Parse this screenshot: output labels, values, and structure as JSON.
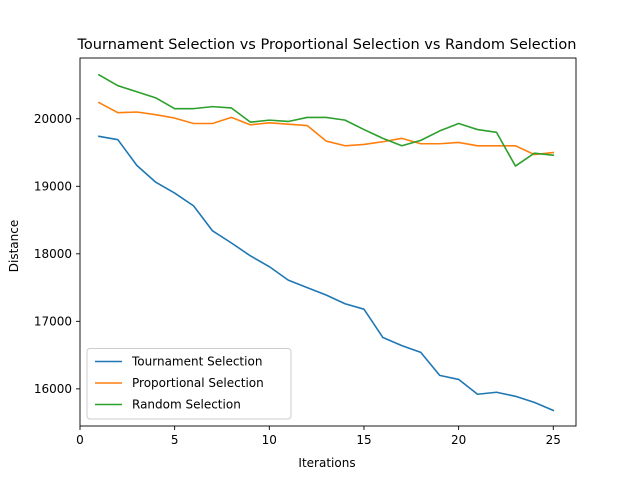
{
  "chart_data": {
    "type": "line",
    "title": "Tournament Selection vs Proportional Selection vs Random Selection",
    "xlabel": "Iterations",
    "ylabel": "Distance",
    "xlim": [
      0,
      26.2
    ],
    "ylim": [
      15450,
      20900
    ],
    "xticks": [
      0,
      5,
      10,
      15,
      20,
      25
    ],
    "yticks": [
      16000,
      17000,
      18000,
      19000,
      20000
    ],
    "grid": false,
    "legend_position": "lower-left",
    "x": [
      1,
      2,
      3,
      4,
      5,
      6,
      7,
      8,
      9,
      10,
      11,
      12,
      13,
      14,
      15,
      16,
      17,
      18,
      19,
      20,
      21,
      22,
      23,
      24,
      25
    ],
    "series": [
      {
        "name": "Tournament Selection",
        "color": "#1f77b4",
        "values": [
          19740,
          19690,
          19310,
          19060,
          18900,
          18710,
          18340,
          18160,
          17970,
          17810,
          17610,
          17500,
          17390,
          17260,
          17180,
          16760,
          16640,
          16540,
          16200,
          16140,
          15920,
          15950,
          15890,
          15800,
          15680
        ]
      },
      {
        "name": "Proportional Selection",
        "color": "#ff7f0e",
        "values": [
          20240,
          20090,
          20100,
          20060,
          20010,
          19930,
          19930,
          20020,
          19910,
          19940,
          19920,
          19900,
          19670,
          19600,
          19620,
          19660,
          19710,
          19630,
          19630,
          19650,
          19600,
          19600,
          19600,
          19470,
          19500
        ]
      },
      {
        "name": "Random Selection",
        "color": "#2ca02c",
        "values": [
          20650,
          20490,
          20400,
          20310,
          20150,
          20150,
          20180,
          20160,
          19950,
          19980,
          19960,
          20020,
          20020,
          19980,
          19840,
          19710,
          19600,
          19680,
          19820,
          19930,
          19840,
          19800,
          19300,
          19490,
          19460
        ]
      }
    ]
  }
}
